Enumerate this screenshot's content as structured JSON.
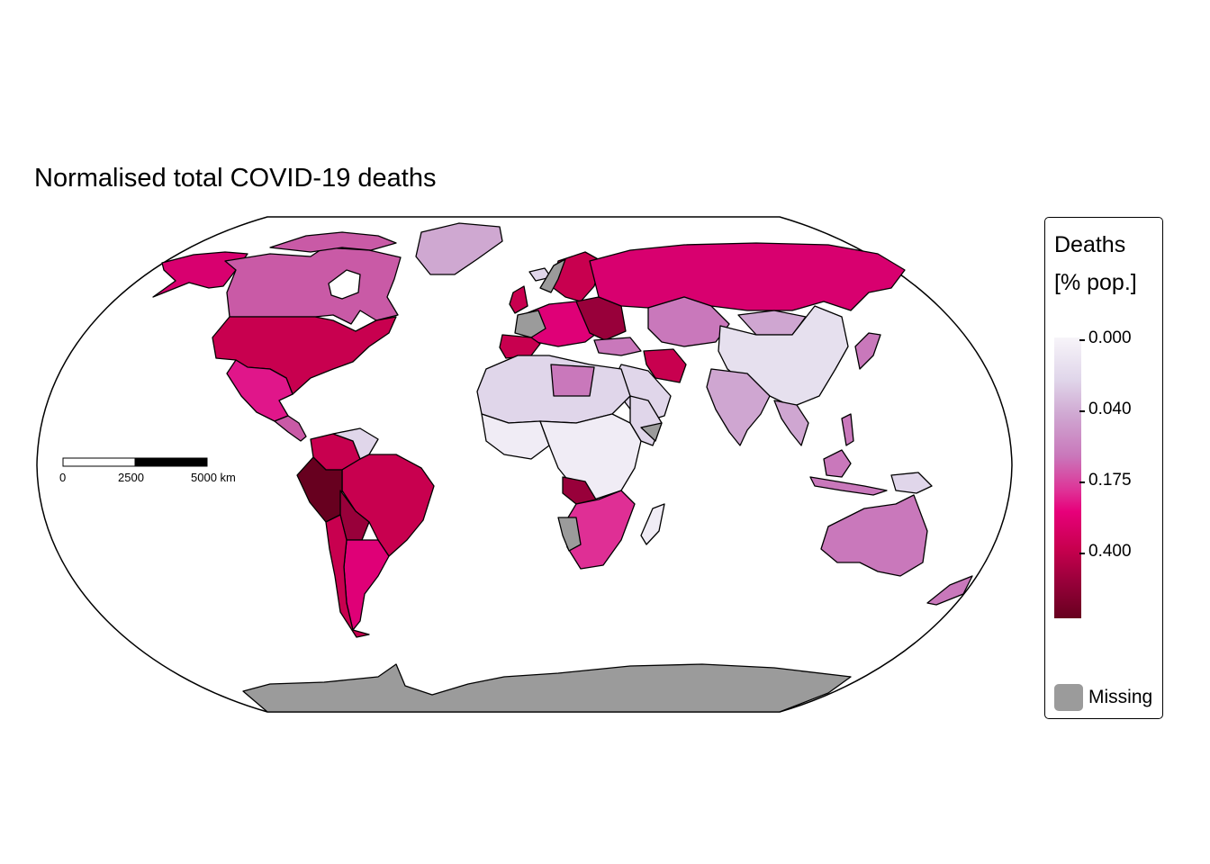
{
  "title": "Normalised total COVID-19 deaths",
  "legend": {
    "title_line1": "Deaths",
    "title_line2": "[% pop.]",
    "ticks": [
      "0.000",
      "0.040",
      "0.175",
      "0.400"
    ],
    "missing_label": "Missing",
    "missing_color": "#9b9b9b",
    "palette": [
      "#f7f4f9",
      "#e0d6ea",
      "#cfa6d1",
      "#c978bb",
      "#df2f95",
      "#e7007a",
      "#c8004f",
      "#98003a",
      "#67001f"
    ]
  },
  "scale_bar": {
    "labels": [
      "0",
      "2500",
      "5000 km"
    ]
  },
  "map_colors": {
    "ocean": "#ffffff",
    "missing": "#9b9b9b",
    "border": "#000000"
  }
}
